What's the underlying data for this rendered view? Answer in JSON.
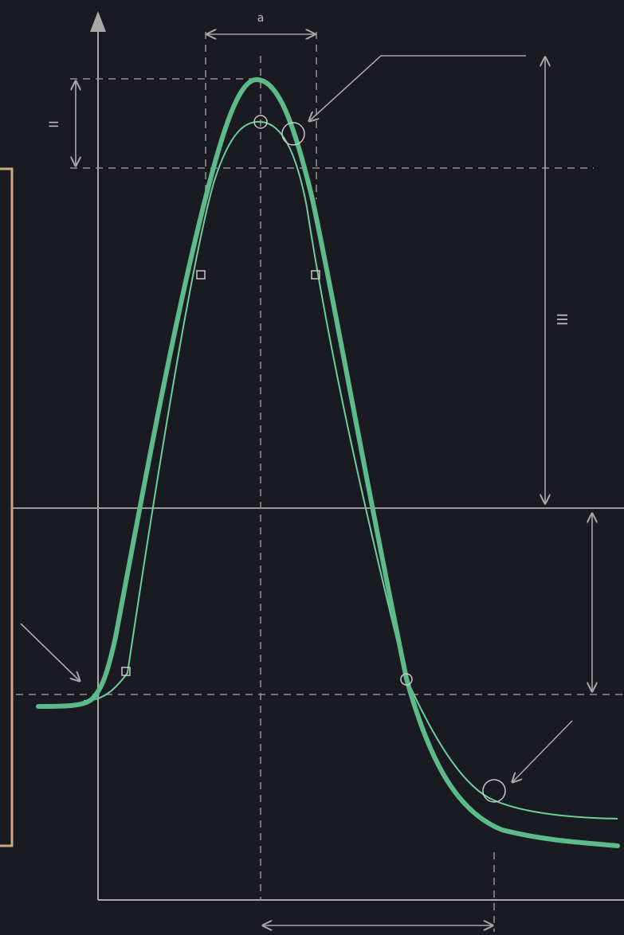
{
  "colors": {
    "background": "#1a1a22",
    "axis": "#a8a8a8",
    "guide": "#9a9a9a",
    "dashed": "#8e8e8e",
    "curve_primary": "#5dbb8a",
    "curve_secondary": "#6ccf9b",
    "frame": "#c9ad7c",
    "marker": "#c7c7c7"
  },
  "labels": {
    "top_dimension": "a",
    "left_dimension": "II",
    "right_dimension": "III"
  },
  "icons": [
    "arrow-icon",
    "circle-marker-icon",
    "square-marker-icon"
  ]
}
